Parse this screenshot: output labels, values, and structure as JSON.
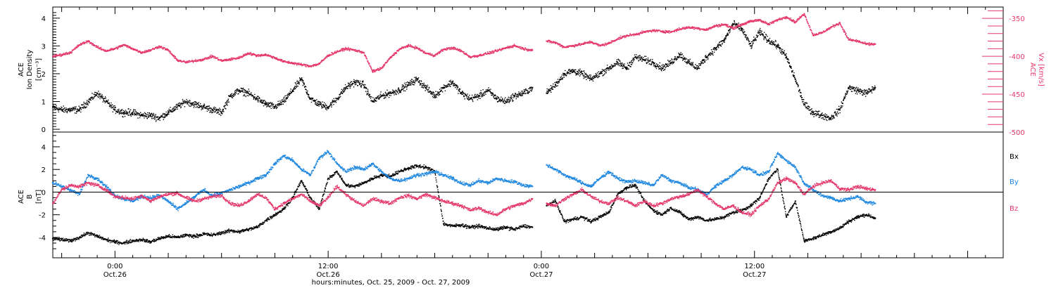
{
  "colors": {
    "black": "#000000",
    "pink": "#e5376b",
    "blue": "#1b86e0"
  },
  "xaxis": {
    "label": "hours:minutes, Oct. 25, 2009 - Oct. 27, 2009",
    "start_hour": 20.5,
    "end_hour": 74.0,
    "ticks": [
      {
        "hour": 24,
        "line1": "0:00",
        "line2": "Oct.26"
      },
      {
        "hour": 36,
        "line1": "12:00",
        "line2": "Oct.26"
      },
      {
        "hour": 48,
        "line1": "0:00",
        "line2": "Oct.27"
      },
      {
        "hour": 60,
        "line1": "12:00",
        "line2": "Oct.27"
      }
    ]
  },
  "chart_data": [
    {
      "type": "scatter",
      "panel": "top",
      "ylabel": [
        "ACE",
        "Ion Density",
        "[cm⁻³]"
      ],
      "ylim": [
        -0.1,
        4.4
      ],
      "yticks": [
        0,
        1,
        2,
        3,
        4
      ],
      "y2label": [
        "ACE",
        "Vx [km/s]"
      ],
      "y2lim": [
        -500,
        -335
      ],
      "y2ticks": [
        -350,
        -400,
        -450,
        -500
      ],
      "gap_hours": [
        47.8,
        48.3
      ],
      "series": [
        {
          "color_key": "black",
          "axis": "left",
          "x": [
            20.5,
            21.0,
            21.5,
            22.0,
            22.5,
            23.0,
            23.5,
            24.0,
            24.5,
            25.0,
            25.5,
            26.0,
            26.5,
            27.0,
            27.5,
            28.0,
            28.5,
            29.0,
            29.5,
            30.0,
            30.5,
            31.0,
            31.5,
            32.0,
            32.5,
            33.0,
            33.5,
            34.0,
            34.5,
            35.0,
            35.5,
            36.0,
            36.5,
            37.0,
            37.5,
            38.0,
            38.5,
            39.0,
            39.5,
            40.0,
            40.5,
            41.0,
            41.5,
            42.0,
            42.5,
            43.0,
            43.5,
            44.0,
            44.5,
            45.0,
            45.5,
            46.0,
            46.5,
            47.0,
            47.5,
            48.3,
            48.8,
            49.3,
            49.8,
            50.3,
            50.8,
            51.3,
            51.8,
            52.3,
            52.8,
            53.3,
            53.8,
            54.3,
            54.8,
            55.3,
            55.8,
            56.3,
            56.8,
            57.3,
            57.8,
            58.3,
            58.8,
            59.3,
            59.8,
            60.3,
            60.8,
            61.3,
            61.8,
            62.3,
            62.8,
            63.3,
            63.8,
            64.3,
            64.8,
            65.3,
            65.8,
            66.3,
            66.8
          ],
          "y": [
            0.8,
            0.7,
            0.7,
            0.7,
            1.0,
            1.3,
            1.0,
            0.7,
            0.6,
            0.6,
            0.5,
            0.5,
            0.4,
            0.6,
            0.8,
            1.0,
            0.9,
            0.8,
            0.7,
            0.6,
            1.2,
            1.4,
            1.3,
            1.1,
            0.9,
            0.8,
            1.0,
            1.4,
            1.8,
            1.1,
            0.9,
            0.8,
            1.1,
            1.5,
            1.7,
            1.6,
            1.0,
            1.2,
            1.3,
            1.4,
            1.6,
            1.8,
            1.5,
            1.2,
            1.5,
            1.7,
            1.3,
            1.1,
            1.2,
            1.4,
            1.1,
            1.0,
            1.2,
            1.3,
            1.5,
            1.3,
            1.6,
            2.0,
            2.1,
            2.0,
            1.8,
            2.0,
            2.2,
            2.4,
            2.2,
            2.6,
            2.5,
            2.4,
            2.2,
            2.4,
            2.7,
            2.4,
            2.2,
            2.6,
            2.9,
            3.2,
            3.8,
            3.6,
            3.0,
            3.5,
            3.2,
            3.0,
            2.6,
            1.8,
            0.9,
            0.6,
            0.5,
            0.4,
            0.7,
            1.5,
            1.4,
            1.3,
            1.5
          ]
        },
        {
          "color_key": "pink",
          "axis": "right",
          "x": [
            20.5,
            21.0,
            21.5,
            22.0,
            22.5,
            23.0,
            23.5,
            24.0,
            24.5,
            25.0,
            25.5,
            26.0,
            26.5,
            27.0,
            27.5,
            28.0,
            28.5,
            29.0,
            29.5,
            30.0,
            30.5,
            31.0,
            31.5,
            32.0,
            32.5,
            33.0,
            33.5,
            34.0,
            34.5,
            35.0,
            35.5,
            36.0,
            36.5,
            37.0,
            37.5,
            38.0,
            38.5,
            39.0,
            39.5,
            40.0,
            40.5,
            41.0,
            41.5,
            42.0,
            42.5,
            43.0,
            43.5,
            44.0,
            44.5,
            45.0,
            45.5,
            46.0,
            46.5,
            47.0,
            47.5,
            48.3,
            48.8,
            49.3,
            49.8,
            50.3,
            50.8,
            51.3,
            51.8,
            52.3,
            52.8,
            53.3,
            53.8,
            54.3,
            54.8,
            55.3,
            55.8,
            56.3,
            56.8,
            57.3,
            57.8,
            58.3,
            58.8,
            59.3,
            59.8,
            60.3,
            60.8,
            61.3,
            61.8,
            62.3,
            62.8,
            63.3,
            63.8,
            64.3,
            64.8,
            65.3,
            65.8,
            66.3,
            66.8
          ],
          "y": [
            -400,
            -398,
            -395,
            -385,
            -380,
            -388,
            -393,
            -390,
            -385,
            -390,
            -395,
            -392,
            -387,
            -392,
            -405,
            -408,
            -406,
            -404,
            -400,
            -406,
            -404,
            -402,
            -396,
            -399,
            -398,
            -402,
            -407,
            -409,
            -411,
            -413,
            -410,
            -399,
            -394,
            -390,
            -392,
            -395,
            -420,
            -416,
            -402,
            -391,
            -386,
            -389,
            -396,
            -399,
            -391,
            -389,
            -393,
            -401,
            -399,
            -396,
            -393,
            -389,
            -386,
            -390,
            -392,
            -380,
            -382,
            -388,
            -386,
            -384,
            -381,
            -386,
            -383,
            -377,
            -373,
            -371,
            -368,
            -366,
            -367,
            -368,
            -364,
            -362,
            -363,
            -365,
            -360,
            -358,
            -363,
            -358,
            -354,
            -352,
            -358,
            -352,
            -348,
            -355,
            -344,
            -372,
            -369,
            -362,
            -356,
            -378,
            -380,
            -384,
            -384
          ]
        }
      ]
    },
    {
      "type": "scatter",
      "panel": "bottom",
      "ylabel": [
        "ACE",
        "B",
        "[nT]"
      ],
      "ylim": [
        -5.8,
        5.3
      ],
      "yticks": [
        4,
        2,
        0,
        -2,
        -4
      ],
      "zero_line": true,
      "gap_hours": [
        47.8,
        48.3
      ],
      "legend": [
        {
          "text": "Bx",
          "color_key": "black"
        },
        {
          "text": "By",
          "color_key": "blue"
        },
        {
          "text": "Bz",
          "color_key": "pink"
        }
      ],
      "series": [
        {
          "name": "Bx",
          "color_key": "black",
          "x": [
            20.5,
            21.0,
            21.5,
            22.0,
            22.5,
            23.0,
            23.5,
            24.0,
            24.5,
            25.0,
            25.5,
            26.0,
            26.5,
            27.0,
            27.5,
            28.0,
            28.5,
            29.0,
            29.5,
            30.0,
            30.5,
            31.0,
            31.5,
            32.0,
            32.5,
            33.0,
            33.5,
            34.0,
            34.5,
            35.0,
            35.5,
            36.0,
            36.5,
            37.0,
            37.5,
            38.0,
            38.5,
            39.0,
            39.5,
            40.0,
            40.5,
            41.0,
            41.5,
            42.0,
            42.5,
            43.0,
            43.5,
            44.0,
            44.5,
            45.0,
            45.5,
            46.0,
            46.5,
            47.0,
            47.5,
            48.3,
            48.8,
            49.3,
            49.8,
            50.3,
            50.8,
            51.3,
            51.8,
            52.3,
            52.8,
            53.3,
            53.8,
            54.3,
            54.8,
            55.3,
            55.8,
            56.3,
            56.8,
            57.3,
            57.8,
            58.3,
            58.8,
            59.3,
            59.8,
            60.3,
            60.8,
            61.3,
            61.8,
            62.3,
            62.8,
            63.3,
            63.8,
            64.3,
            64.8,
            65.3,
            65.8,
            66.3,
            66.8
          ],
          "y": [
            -4.1,
            -4.2,
            -4.3,
            -4.0,
            -3.6,
            -3.9,
            -4.2,
            -4.4,
            -4.5,
            -4.3,
            -4.2,
            -4.4,
            -4.1,
            -3.9,
            -4.0,
            -3.8,
            -3.9,
            -3.7,
            -3.8,
            -3.6,
            -3.4,
            -3.5,
            -3.3,
            -3.1,
            -2.5,
            -2.0,
            -1.5,
            -0.5,
            1.0,
            -0.5,
            -1.5,
            1.2,
            1.8,
            0.6,
            0.5,
            0.8,
            1.2,
            1.5,
            1.4,
            1.8,
            2.1,
            2.3,
            2.2,
            1.8,
            -2.8,
            -3.0,
            -2.9,
            -3.1,
            -3.0,
            -3.2,
            -3.3,
            -3.1,
            -3.3,
            -3.0,
            -3.1,
            -1.2,
            -0.8,
            -2.6,
            -2.4,
            -2.2,
            -2.6,
            -2.2,
            -1.8,
            -0.2,
            0.4,
            0.6,
            -0.8,
            -1.6,
            -2.0,
            -1.4,
            -1.8,
            -2.4,
            -2.2,
            -2.5,
            -2.4,
            -2.2,
            -1.8,
            -1.6,
            -1.2,
            -0.5,
            1.2,
            2.0,
            -2.2,
            -0.8,
            -4.3,
            -4.1,
            -3.8,
            -3.5,
            -3.2,
            -2.6,
            -2.2,
            -2.0,
            -2.3
          ]
        },
        {
          "name": "By",
          "color_key": "blue",
          "x": [
            20.5,
            21.0,
            21.5,
            22.0,
            22.5,
            23.0,
            23.5,
            24.0,
            24.5,
            25.0,
            25.5,
            26.0,
            26.5,
            27.0,
            27.5,
            28.0,
            28.5,
            29.0,
            29.5,
            30.0,
            30.5,
            31.0,
            31.5,
            32.0,
            32.5,
            33.0,
            33.5,
            34.0,
            34.5,
            35.0,
            35.5,
            36.0,
            36.5,
            37.0,
            37.5,
            38.0,
            38.5,
            39.0,
            39.5,
            40.0,
            40.5,
            41.0,
            41.5,
            42.0,
            42.5,
            43.0,
            43.5,
            44.0,
            44.5,
            45.0,
            45.5,
            46.0,
            46.5,
            47.0,
            47.5,
            48.3,
            48.8,
            49.3,
            49.8,
            50.3,
            50.8,
            51.3,
            51.8,
            52.3,
            52.8,
            53.3,
            53.8,
            54.3,
            54.8,
            55.3,
            55.8,
            56.3,
            56.8,
            57.3,
            57.8,
            58.3,
            58.8,
            59.3,
            59.8,
            60.3,
            60.8,
            61.3,
            61.8,
            62.3,
            62.8,
            63.3,
            63.8,
            64.3,
            64.8,
            65.3,
            65.8,
            66.3,
            66.8
          ],
          "y": [
            0.8,
            0.5,
            0.2,
            -0.2,
            1.5,
            1.2,
            0.5,
            -0.3,
            -0.6,
            -0.8,
            -0.4,
            -0.5,
            -0.3,
            -0.8,
            -1.5,
            -1.0,
            -0.4,
            0.2,
            -0.3,
            -0.1,
            0.2,
            0.5,
            0.8,
            1.2,
            1.5,
            2.5,
            3.2,
            2.8,
            2.0,
            1.5,
            3.0,
            3.6,
            2.5,
            1.8,
            2.2,
            2.0,
            2.5,
            1.8,
            1.2,
            1.0,
            1.2,
            1.5,
            1.6,
            1.8,
            1.5,
            1.2,
            0.8,
            0.6,
            1.0,
            0.8,
            1.2,
            1.0,
            0.9,
            0.6,
            0.5,
            2.4,
            2.0,
            1.5,
            1.2,
            0.8,
            0.5,
            1.2,
            1.8,
            1.2,
            0.9,
            1.0,
            0.8,
            0.6,
            1.5,
            1.0,
            0.8,
            0.4,
            0.2,
            -0.2,
            0.5,
            1.0,
            1.5,
            2.2,
            2.0,
            1.5,
            1.8,
            3.4,
            2.8,
            2.2,
            0.8,
            0.2,
            -0.3,
            -0.5,
            -0.8,
            -0.6,
            -0.4,
            -0.9,
            -1.0
          ]
        },
        {
          "name": "Bz",
          "color_key": "pink",
          "x": [
            20.5,
            21.0,
            21.5,
            22.0,
            22.5,
            23.0,
            23.5,
            24.0,
            24.5,
            25.0,
            25.5,
            26.0,
            26.5,
            27.0,
            27.5,
            28.0,
            28.5,
            29.0,
            29.5,
            30.0,
            30.5,
            31.0,
            31.5,
            32.0,
            32.5,
            33.0,
            33.5,
            34.0,
            34.5,
            35.0,
            35.5,
            36.0,
            36.5,
            37.0,
            37.5,
            38.0,
            38.5,
            39.0,
            39.5,
            40.0,
            40.5,
            41.0,
            41.5,
            42.0,
            42.5,
            43.0,
            43.5,
            44.0,
            44.5,
            45.0,
            45.5,
            46.0,
            46.5,
            47.0,
            47.5,
            48.3,
            48.8,
            49.3,
            49.8,
            50.3,
            50.8,
            51.3,
            51.8,
            52.3,
            52.8,
            53.3,
            53.8,
            54.3,
            54.8,
            55.3,
            55.8,
            56.3,
            56.8,
            57.3,
            57.8,
            58.3,
            58.8,
            59.3,
            59.8,
            60.3,
            60.8,
            61.3,
            61.8,
            62.3,
            62.8,
            63.3,
            63.8,
            64.3,
            64.8,
            65.3,
            65.8,
            66.3,
            66.8
          ],
          "y": [
            -1.0,
            0.2,
            0.6,
            0.5,
            0.8,
            0.6,
            0.2,
            -0.4,
            -0.5,
            -0.6,
            -0.3,
            -0.8,
            -0.4,
            -0.2,
            -0.1,
            -0.5,
            -0.8,
            -0.6,
            -0.4,
            -0.3,
            -1.0,
            -1.2,
            -0.8,
            -0.2,
            -0.5,
            -1.5,
            -1.0,
            -0.6,
            -0.2,
            -0.8,
            -1.2,
            -0.5,
            0.5,
            -0.2,
            -0.8,
            -1.2,
            -0.6,
            -0.8,
            -1.0,
            -0.5,
            -0.3,
            -0.6,
            -0.2,
            -0.5,
            -0.8,
            -1.0,
            -1.2,
            -1.6,
            -1.4,
            -1.8,
            -2.0,
            -1.5,
            -1.2,
            -1.0,
            -0.6,
            -1.0,
            -1.2,
            -0.6,
            -0.2,
            0.2,
            -0.4,
            -0.8,
            -1.0,
            -0.5,
            -0.8,
            -1.2,
            -0.8,
            -1.2,
            -1.0,
            -0.6,
            -0.4,
            -0.2,
            0.2,
            -0.4,
            -1.0,
            -1.5,
            -1.2,
            -1.8,
            -2.0,
            -1.2,
            -0.6,
            0.8,
            1.2,
            0.8,
            -0.2,
            0.5,
            0.8,
            1.0,
            0.3,
            0.2,
            0.5,
            0.3,
            0.2
          ]
        }
      ]
    }
  ]
}
